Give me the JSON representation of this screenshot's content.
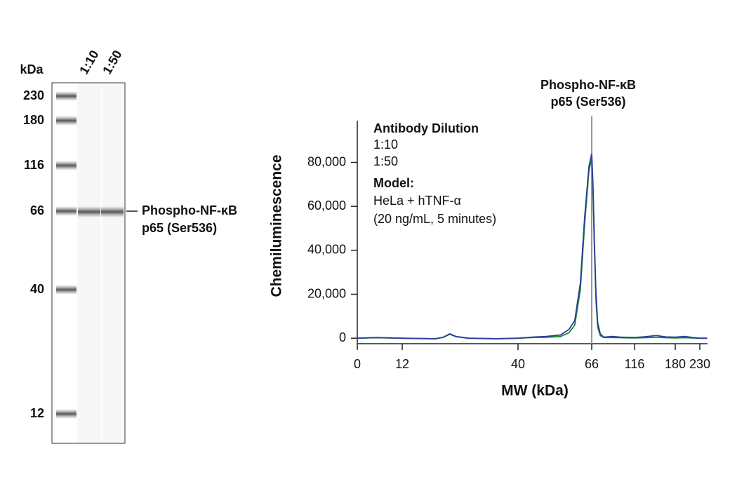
{
  "blot": {
    "unit_label": "kDa",
    "lanes": [
      "1:10",
      "1:50"
    ],
    "markers": [
      230,
      180,
      116,
      66,
      40,
      12
    ],
    "band_label": [
      "Phospho-NF-κB",
      "p65 (Ser536)"
    ]
  },
  "chart_data": {
    "type": "line",
    "y_label": "Chemiluminescence",
    "x_label": "MW (kDa)",
    "legend_title": "Antibody Dilution",
    "annotations": [
      "Model:",
      "HeLa + hTNF-α",
      "(20 ng/mL, 5 minutes)"
    ],
    "reference_line": {
      "x": 66,
      "label": [
        "Phospho-NF-κB",
        "p65 (Ser536)"
      ],
      "color": "#999999"
    },
    "xlim": [
      0,
      245
    ],
    "xticks": [
      0,
      12,
      40,
      66,
      116,
      180,
      230
    ],
    "ylim": [
      -2500,
      99000
    ],
    "yticks": [
      0,
      {
        "value": 20000,
        "label": "20,000"
      },
      {
        "value": 40000,
        "label": "40,000"
      },
      {
        "value": 60000,
        "label": "60,000"
      },
      {
        "value": 80000,
        "label": "80,000"
      }
    ],
    "series": [
      {
        "name": "1:50",
        "color": "#1a8a2a",
        "x": [
          0,
          5,
          12,
          20,
          22,
          23.5,
          25,
          28,
          35,
          40,
          45,
          50,
          55,
          58,
          60,
          62,
          63.5,
          65,
          66,
          67.5,
          69,
          71,
          73,
          76,
          80,
          90,
          100,
          116,
          130,
          150,
          165,
          180,
          200,
          215,
          230,
          245
        ],
        "values": [
          0,
          200,
          0,
          -200,
          400,
          1800,
          700,
          0,
          -200,
          0,
          300,
          400,
          800,
          2500,
          6000,
          22000,
          52000,
          76000,
          82000,
          68000,
          42000,
          17000,
          5000,
          1200,
          300,
          300,
          200,
          100,
          200,
          400,
          200,
          100,
          200,
          100,
          0,
          0
        ]
      },
      {
        "name": "1:10",
        "color": "#2b3fa0",
        "x": [
          0,
          5,
          12,
          20,
          22,
          23.5,
          25,
          28,
          35,
          40,
          45,
          50,
          55,
          58,
          60,
          62,
          63.5,
          65,
          66,
          67.5,
          69,
          71,
          73,
          76,
          80,
          90,
          100,
          116,
          130,
          150,
          165,
          180,
          200,
          215,
          230,
          245
        ],
        "values": [
          0,
          300,
          0,
          -300,
          500,
          2000,
          800,
          0,
          -300,
          0,
          500,
          800,
          1500,
          4000,
          8000,
          25000,
          55000,
          78000,
          84000,
          70000,
          45000,
          20000,
          7000,
          2000,
          500,
          800,
          500,
          300,
          600,
          1200,
          600,
          500,
          800,
          300,
          0,
          0
        ]
      }
    ]
  }
}
